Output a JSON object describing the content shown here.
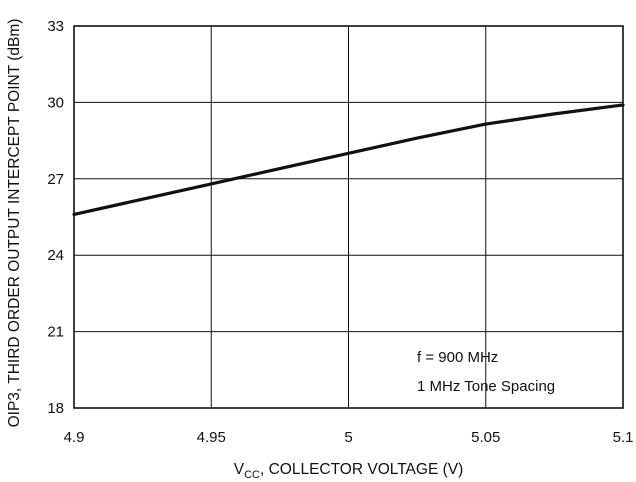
{
  "chart_data": {
    "type": "line",
    "title": "",
    "xlabel": {
      "prefix": "V",
      "subscript": "CC",
      "suffix": ", COLLECTOR VOLTAGE (V)"
    },
    "ylabel": "OIP3, THIRD ORDER OUTPUT INTERCEPT POINT (dBm)",
    "xlim": [
      4.9,
      5.1
    ],
    "ylim": [
      18,
      33
    ],
    "xticks": [
      4.9,
      4.95,
      5.0,
      5.05,
      5.1
    ],
    "xtick_labels": [
      "4.9",
      "4.95",
      "5",
      "5.05",
      "5.1"
    ],
    "yticks": [
      18,
      21,
      24,
      27,
      30,
      33
    ],
    "ytick_labels": [
      "18",
      "21",
      "24",
      "27",
      "30",
      "33"
    ],
    "grid": true,
    "line_color": "#111111",
    "grid_color": "#111111",
    "series": [
      {
        "x": [
          4.9,
          4.925,
          4.95,
          4.975,
          5.0,
          5.025,
          5.05,
          5.075,
          5.1
        ],
        "y": [
          25.6,
          26.2,
          26.8,
          27.4,
          28.0,
          28.6,
          29.15,
          29.55,
          29.9
        ]
      }
    ],
    "annotations": [
      "f = 900 MHz",
      "1 MHz Tone Spacing"
    ]
  }
}
